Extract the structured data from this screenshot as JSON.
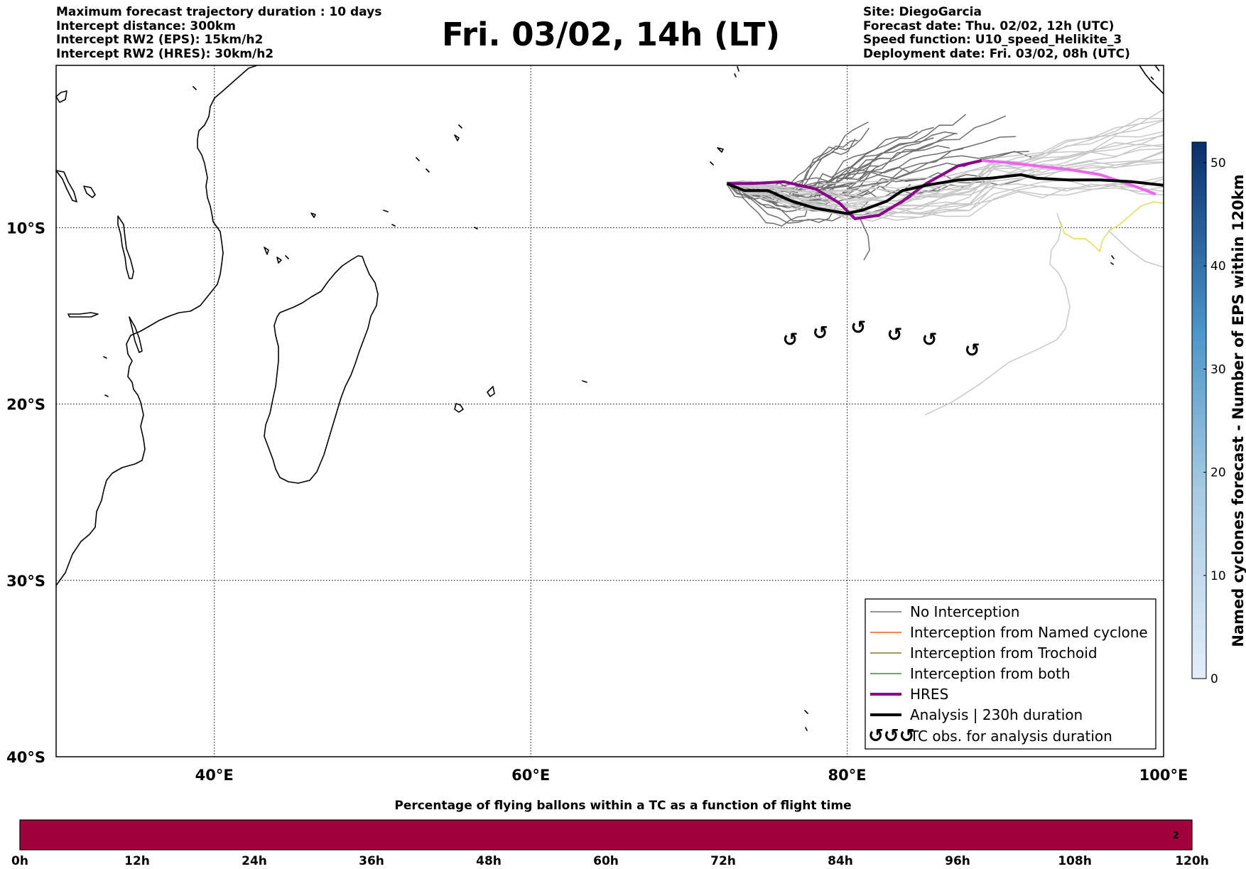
{
  "header": {
    "left_lines": [
      "Maximum forecast trajectory duration : 10 days",
      "Intercept distance: 300km",
      "Intercept RW2 (EPS):  15km/h2",
      "Intercept RW2 (HRES): 30km/h2"
    ],
    "right_lines": [
      "Site: DiegoGarcia",
      "Forecast date: Thu. 02/02, 12h (UTC)",
      "Speed function: U10_speed_Helikite_3",
      "Deployment date: Fri. 03/02, 08h (UTC)"
    ],
    "title": "Fri. 03/02, 14h (LT)"
  },
  "map": {
    "lon_range": [
      30,
      100
    ],
    "lat_range": [
      -40,
      -0.8
    ],
    "lon_ticks": [
      {
        "value": 40,
        "label": "40°E"
      },
      {
        "value": 60,
        "label": "60°E"
      },
      {
        "value": 80,
        "label": "80°E"
      },
      {
        "value": 100,
        "label": "100°E"
      }
    ],
    "lat_ticks": [
      {
        "value": -10,
        "label": "10°S"
      },
      {
        "value": -20,
        "label": "20°S"
      },
      {
        "value": -30,
        "label": "30°S"
      },
      {
        "value": -40,
        "label": "40°S"
      }
    ],
    "grid": true
  },
  "legend": {
    "items": [
      {
        "label": "No Interception",
        "color": "#707070",
        "style": "thin"
      },
      {
        "label": "Interception from Named cyclone",
        "color": "#e8601c",
        "style": "thin"
      },
      {
        "label": "Interception from Trochoid",
        "color": "#8a7a10",
        "style": "thin"
      },
      {
        "label": "Interception from both",
        "color": "#2a9a2a",
        "style": "thin"
      },
      {
        "label": "HRES",
        "color": "#8b008b",
        "style": "thick"
      },
      {
        "label": "Analysis | 230h duration",
        "color": "#000000",
        "style": "thick"
      },
      {
        "label": "TC obs. for analysis duration",
        "color": "#000000",
        "style": "symbol",
        "symbol": "↺↺↺"
      }
    ]
  },
  "colorbar_right": {
    "label": "Named cyclones forecast - Number of EPS within 120km",
    "ticks": [
      "0",
      "10",
      "20",
      "30",
      "40",
      "50"
    ],
    "tick_values": [
      0,
      10,
      20,
      30,
      40,
      50
    ],
    "max": 52,
    "color_low": "#e3eef9",
    "color_high": "#08306b"
  },
  "colorbar_bottom": {
    "title": "Percentage of flying ballons within a TC as a function of flight time",
    "ticks": [
      "0h",
      "12h",
      "24h",
      "36h",
      "48h",
      "60h",
      "72h",
      "84h",
      "96h",
      "108h",
      "120h"
    ],
    "fill_color": "#a0003c",
    "end_label": "2"
  },
  "tc_observation_symbol": "↺",
  "chart_data": {
    "type": "line",
    "xlabel": "",
    "ylabel": "",
    "xlim": [
      30,
      100
    ],
    "ylim": [
      -40,
      -0.8
    ],
    "series": [
      {
        "name": "HRES",
        "color": "#8b008b",
        "x": [
          72.4,
          74,
          76,
          78,
          79.5,
          80.5,
          82,
          83.5,
          85,
          87,
          88.5
        ],
        "y": [
          -7.5,
          -7.5,
          -7.4,
          -7.8,
          -8.6,
          -9.5,
          -9.3,
          -8.5,
          -7.5,
          -6.5,
          -6.2
        ]
      },
      {
        "name": "HRES (continued)",
        "color": "#ee66ee",
        "x": [
          88.5,
          90,
          92,
          94,
          96,
          98,
          99.5
        ],
        "y": [
          -6.2,
          -6.3,
          -6.5,
          -6.7,
          -7.0,
          -7.6,
          -8.1
        ]
      },
      {
        "name": "Analysis | 230h duration",
        "color": "#000000",
        "x": [
          72.4,
          73.5,
          75,
          76.5,
          78,
          80,
          81,
          82.5,
          83.5,
          85,
          87,
          89,
          91,
          92,
          94,
          96,
          98,
          100
        ],
        "y": [
          -7.5,
          -7.9,
          -7.9,
          -8.5,
          -8.9,
          -9.2,
          -9.0,
          -8.5,
          -7.9,
          -7.6,
          -7.3,
          -7.2,
          -7.0,
          -7.2,
          -7.3,
          -7.3,
          -7.4,
          -7.6
        ]
      }
    ],
    "tc_obs": {
      "x": [
        76.4,
        78.3,
        80.7,
        83.0,
        85.2,
        87.9
      ],
      "y": [
        -16.3,
        -15.9,
        -15.6,
        -16.0,
        -16.3,
        -16.9
      ]
    }
  }
}
